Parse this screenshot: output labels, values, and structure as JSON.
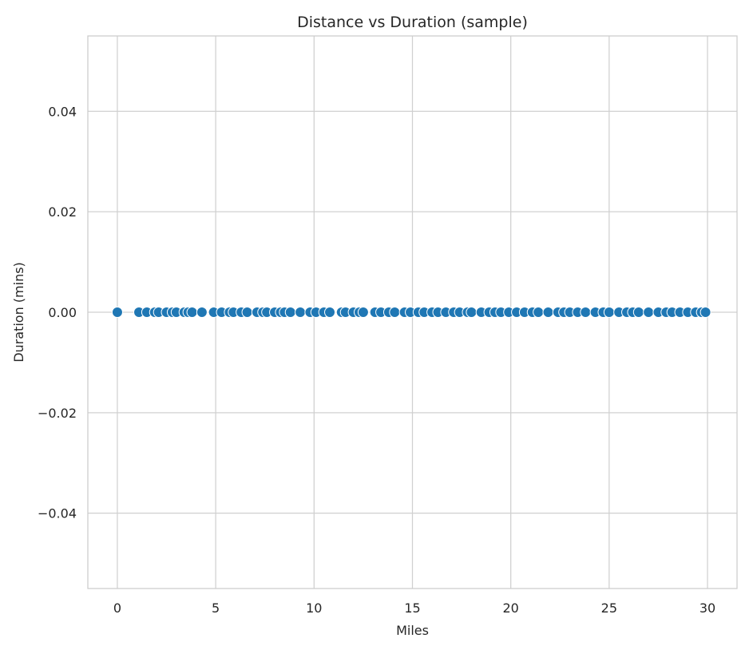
{
  "chart_data": {
    "type": "scatter",
    "title": "Distance vs Duration (sample)",
    "xlabel": "Miles",
    "ylabel": "Duration (mins)",
    "xlim": [
      -1.5,
      31.5
    ],
    "ylim": [
      -0.055,
      0.055
    ],
    "xticks": [
      0,
      5,
      10,
      15,
      20,
      25,
      30
    ],
    "xtick_labels": [
      "0",
      "5",
      "10",
      "15",
      "20",
      "25",
      "30"
    ],
    "yticks": [
      0.04,
      0.02,
      0.0,
      -0.02,
      -0.04
    ],
    "ytick_labels": [
      "0.04",
      "0.02",
      "0.00",
      "−0.02",
      "−0.04"
    ],
    "grid": true,
    "series": [
      {
        "color": "#1f77b4",
        "edgecolor": "#ffffff",
        "points": [
          {
            "x": 0.0,
            "y": 0.0
          },
          {
            "x": 1.1,
            "y": 0.0
          },
          {
            "x": 1.5,
            "y": 0.0
          },
          {
            "x": 1.9,
            "y": 0.0
          },
          {
            "x": 2.1,
            "y": 0.0
          },
          {
            "x": 2.5,
            "y": 0.0
          },
          {
            "x": 2.8,
            "y": 0.0
          },
          {
            "x": 3.0,
            "y": 0.0
          },
          {
            "x": 3.4,
            "y": 0.0
          },
          {
            "x": 3.6,
            "y": 0.0
          },
          {
            "x": 3.8,
            "y": 0.0
          },
          {
            "x": 4.3,
            "y": 0.0
          },
          {
            "x": 4.9,
            "y": 0.0
          },
          {
            "x": 5.3,
            "y": 0.0
          },
          {
            "x": 5.7,
            "y": 0.0
          },
          {
            "x": 5.9,
            "y": 0.0
          },
          {
            "x": 6.3,
            "y": 0.0
          },
          {
            "x": 6.6,
            "y": 0.0
          },
          {
            "x": 7.1,
            "y": 0.0
          },
          {
            "x": 7.4,
            "y": 0.0
          },
          {
            "x": 7.6,
            "y": 0.0
          },
          {
            "x": 8.0,
            "y": 0.0
          },
          {
            "x": 8.3,
            "y": 0.0
          },
          {
            "x": 8.5,
            "y": 0.0
          },
          {
            "x": 8.8,
            "y": 0.0
          },
          {
            "x": 9.3,
            "y": 0.0
          },
          {
            "x": 9.8,
            "y": 0.0
          },
          {
            "x": 10.1,
            "y": 0.0
          },
          {
            "x": 10.5,
            "y": 0.0
          },
          {
            "x": 10.8,
            "y": 0.0
          },
          {
            "x": 11.4,
            "y": 0.0
          },
          {
            "x": 11.6,
            "y": 0.0
          },
          {
            "x": 12.0,
            "y": 0.0
          },
          {
            "x": 12.3,
            "y": 0.0
          },
          {
            "x": 12.5,
            "y": 0.0
          },
          {
            "x": 13.1,
            "y": 0.0
          },
          {
            "x": 13.4,
            "y": 0.0
          },
          {
            "x": 13.8,
            "y": 0.0
          },
          {
            "x": 14.1,
            "y": 0.0
          },
          {
            "x": 14.6,
            "y": 0.0
          },
          {
            "x": 14.9,
            "y": 0.0
          },
          {
            "x": 15.3,
            "y": 0.0
          },
          {
            "x": 15.6,
            "y": 0.0
          },
          {
            "x": 16.0,
            "y": 0.0
          },
          {
            "x": 16.3,
            "y": 0.0
          },
          {
            "x": 16.7,
            "y": 0.0
          },
          {
            "x": 17.1,
            "y": 0.0
          },
          {
            "x": 17.4,
            "y": 0.0
          },
          {
            "x": 17.8,
            "y": 0.0
          },
          {
            "x": 18.0,
            "y": 0.0
          },
          {
            "x": 18.5,
            "y": 0.0
          },
          {
            "x": 18.9,
            "y": 0.0
          },
          {
            "x": 19.2,
            "y": 0.0
          },
          {
            "x": 19.5,
            "y": 0.0
          },
          {
            "x": 19.9,
            "y": 0.0
          },
          {
            "x": 20.3,
            "y": 0.0
          },
          {
            "x": 20.7,
            "y": 0.0
          },
          {
            "x": 21.1,
            "y": 0.0
          },
          {
            "x": 21.4,
            "y": 0.0
          },
          {
            "x": 21.9,
            "y": 0.0
          },
          {
            "x": 22.4,
            "y": 0.0
          },
          {
            "x": 22.7,
            "y": 0.0
          },
          {
            "x": 23.0,
            "y": 0.0
          },
          {
            "x": 23.4,
            "y": 0.0
          },
          {
            "x": 23.8,
            "y": 0.0
          },
          {
            "x": 24.3,
            "y": 0.0
          },
          {
            "x": 24.7,
            "y": 0.0
          },
          {
            "x": 25.0,
            "y": 0.0
          },
          {
            "x": 25.5,
            "y": 0.0
          },
          {
            "x": 25.9,
            "y": 0.0
          },
          {
            "x": 26.2,
            "y": 0.0
          },
          {
            "x": 26.5,
            "y": 0.0
          },
          {
            "x": 27.0,
            "y": 0.0
          },
          {
            "x": 27.5,
            "y": 0.0
          },
          {
            "x": 27.9,
            "y": 0.0
          },
          {
            "x": 28.2,
            "y": 0.0
          },
          {
            "x": 28.6,
            "y": 0.0
          },
          {
            "x": 29.0,
            "y": 0.0
          },
          {
            "x": 29.4,
            "y": 0.0
          },
          {
            "x": 29.7,
            "y": 0.0
          },
          {
            "x": 29.9,
            "y": 0.0
          }
        ]
      }
    ]
  },
  "style": {
    "gridline_color": "#d0d0d0",
    "axes_frame_color": "#cccccc",
    "text_color": "#262626",
    "background": "#ffffff"
  }
}
